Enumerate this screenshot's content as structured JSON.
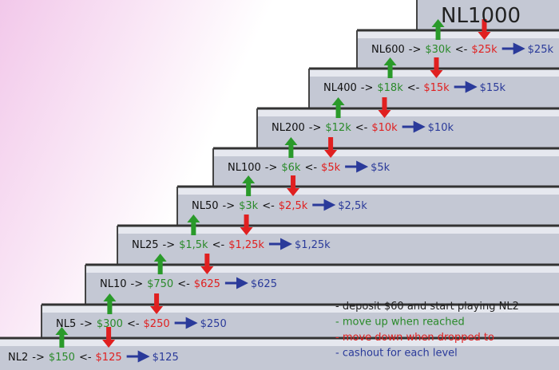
{
  "title": "NL1000",
  "connectors": {
    "up": "->",
    "down": "<-"
  },
  "steps": [
    {
      "name": "NL2",
      "up": "$150",
      "down": "$125",
      "cashout": "$125"
    },
    {
      "name": "NL5",
      "up": "$300",
      "down": "$250",
      "cashout": "$250"
    },
    {
      "name": "NL10",
      "up": "$750",
      "down": "$625",
      "cashout": "$625"
    },
    {
      "name": "NL25",
      "up": "$1,5k",
      "down": "$1,25k",
      "cashout": "$1,25k"
    },
    {
      "name": "NL50",
      "up": "$3k",
      "down": "$2,5k",
      "cashout": "$2,5k"
    },
    {
      "name": "NL100",
      "up": "$6k",
      "down": "$5k",
      "cashout": "$5k"
    },
    {
      "name": "NL200",
      "up": "$12k",
      "down": "$10k",
      "cashout": "$10k"
    },
    {
      "name": "NL400",
      "up": "$18k",
      "down": "$15k",
      "cashout": "$15k"
    },
    {
      "name": "NL600",
      "up": "$30k",
      "down": "$25k",
      "cashout": "$25k"
    }
  ],
  "legend": [
    "- deposit $60 and start playing NL2",
    "- move up when reached",
    "- move down when dropped to",
    "- cashout for each level"
  ]
}
